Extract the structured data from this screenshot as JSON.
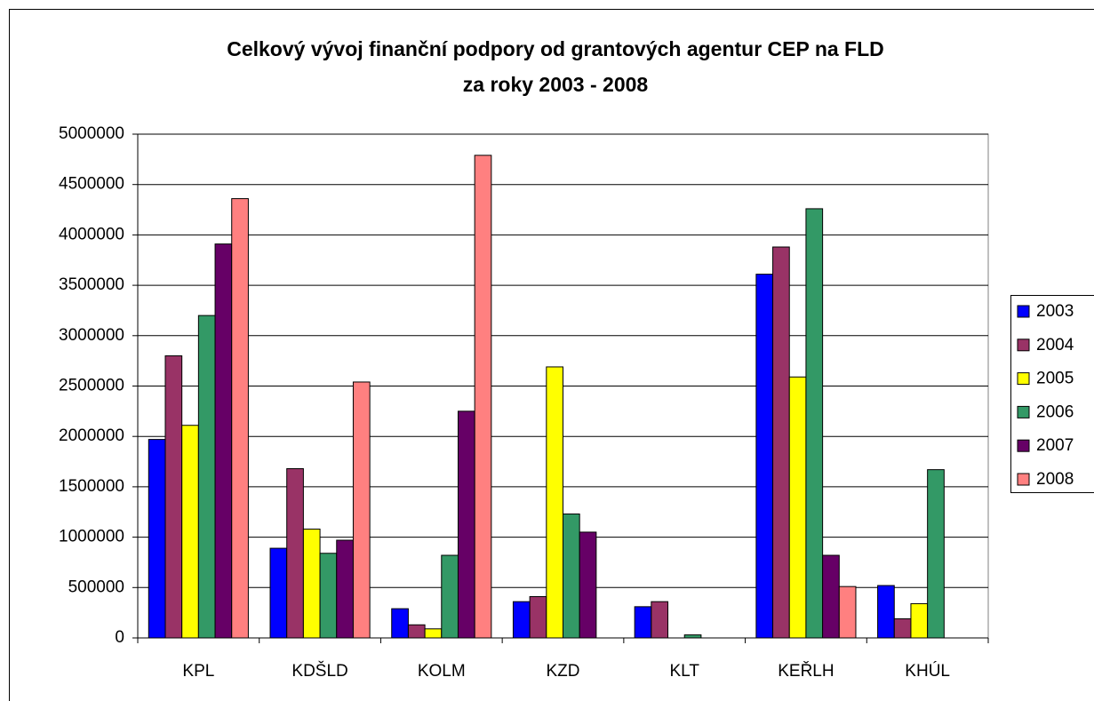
{
  "chart_data": {
    "type": "bar",
    "title": [
      "Celkový vývoj finanční podpory od grantových agentur CEP na FLD",
      "za roky 2003 - 2008"
    ],
    "categories": [
      "KPL",
      "KDŠLD",
      "KOLM",
      "KZD",
      "KLT",
      "KEŘLH",
      "KHÚL"
    ],
    "series": [
      {
        "name": "2003",
        "color": "#0000ff",
        "values": [
          1970000,
          890000,
          290000,
          360000,
          310000,
          3610000,
          520000
        ]
      },
      {
        "name": "2004",
        "color": "#993366",
        "values": [
          2800000,
          1680000,
          130000,
          410000,
          360000,
          3880000,
          190000
        ]
      },
      {
        "name": "2005",
        "color": "#ffff00",
        "values": [
          2110000,
          1080000,
          90000,
          2690000,
          0,
          2590000,
          340000
        ]
      },
      {
        "name": "2006",
        "color": "#339966",
        "values": [
          3200000,
          840000,
          820000,
          1230000,
          30000,
          4260000,
          1670000
        ]
      },
      {
        "name": "2007",
        "color": "#660066",
        "values": [
          3910000,
          970000,
          2250000,
          1050000,
          0,
          820000,
          0
        ]
      },
      {
        "name": "2008",
        "color": "#ff8080",
        "values": [
          4360000,
          2540000,
          4790000,
          0,
          0,
          510000,
          0
        ]
      }
    ],
    "ylim": [
      0,
      5000000
    ],
    "yticks": [
      0,
      500000,
      1000000,
      1500000,
      2000000,
      2500000,
      3000000,
      3500000,
      4000000,
      4500000,
      5000000
    ],
    "grid": true,
    "legend": "right"
  }
}
